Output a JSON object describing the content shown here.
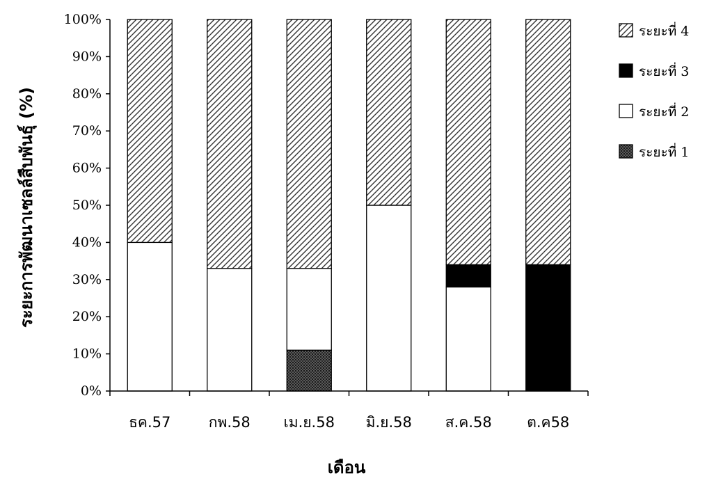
{
  "chart_data": {
    "type": "bar",
    "stacked": true,
    "categories": [
      "ธค.57",
      "กพ.58",
      "เม.ย.58",
      "มิ.ย.58",
      "ส.ค.58",
      "ต.ค58"
    ],
    "series": [
      {
        "name": "ระยะที่ 1",
        "pattern": "crosshatch",
        "color": "#3a3a3a",
        "values": [
          0,
          0,
          11,
          0,
          0,
          0
        ]
      },
      {
        "name": "ระยะที่ 2",
        "pattern": "solid",
        "color": "#ffffff",
        "values": [
          40,
          33,
          22,
          50,
          28,
          0
        ]
      },
      {
        "name": "ระยะที่ 3",
        "pattern": "solid",
        "color": "#000000",
        "values": [
          0,
          0,
          0,
          0,
          6,
          34
        ]
      },
      {
        "name": "ระยะที่ 4",
        "pattern": "diagonal-hatch",
        "color": "#555555",
        "values": [
          60,
          67,
          67,
          50,
          66,
          66
        ]
      }
    ],
    "xlabel": "เดือน",
    "ylabel": "ระยะการพัฒนาเซลล์สืบพันธุ์ (%)",
    "ylim": [
      0,
      100
    ],
    "yticks": [
      "0%",
      "10%",
      "20%",
      "30%",
      "40%",
      "50%",
      "60%",
      "70%",
      "80%",
      "90%",
      "100%"
    ],
    "grid": false,
    "legend_position": "right",
    "legend_order": [
      "ระยะที่ 4",
      "ระยะที่ 3",
      "ระยะที่ 2",
      "ระยะที่ 1"
    ]
  }
}
